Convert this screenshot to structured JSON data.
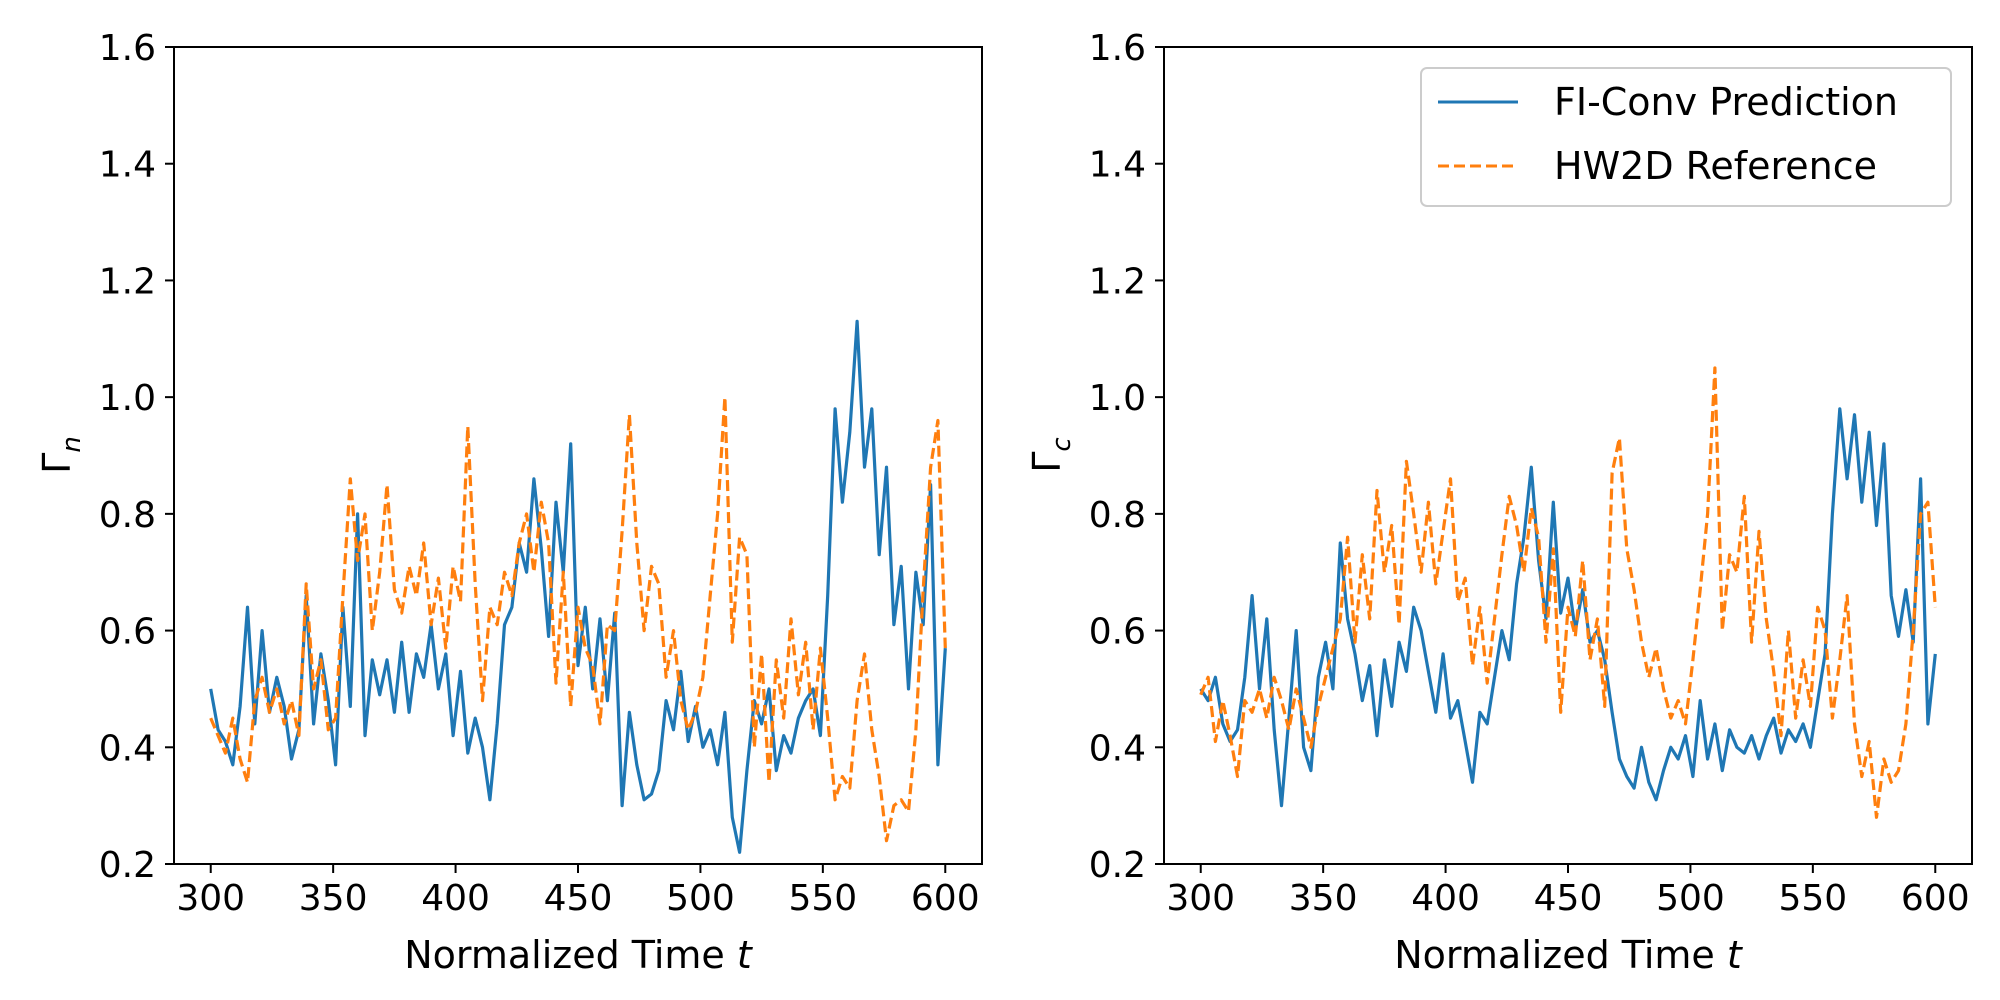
{
  "chart_data": [
    {
      "type": "line",
      "panel": "left",
      "title": "",
      "xlabel": "Normalized Time",
      "xlabel_var": "t",
      "ylabel": "Γ",
      "ylabel_sub": "n",
      "xlim": [
        285,
        615
      ],
      "ylim": [
        0.2,
        1.6
      ],
      "xticks": [
        300,
        350,
        400,
        450,
        500,
        550,
        600
      ],
      "xtick_labels": [
        "300",
        "350",
        "400",
        "450",
        "500",
        "550",
        "600"
      ],
      "yticks": [
        0.2,
        0.4,
        0.6,
        0.8,
        1.0,
        1.2,
        1.4,
        1.6
      ],
      "ytick_labels": [
        "0.2",
        "0.4",
        "0.6",
        "0.8",
        "1.0",
        "1.2",
        "1.4",
        "1.6"
      ],
      "grid": false,
      "legend": null,
      "series": [
        {
          "name": "FI-Conv Prediction",
          "color": "#1f77b4",
          "dash": "solid",
          "x": [
            300,
            303,
            306,
            309,
            312,
            315,
            318,
            321,
            324,
            327,
            330,
            333,
            336,
            339,
            342,
            345,
            348,
            351,
            354,
            357,
            360,
            363,
            366,
            369,
            372,
            375,
            378,
            381,
            384,
            387,
            390,
            393,
            396,
            399,
            402,
            405,
            408,
            411,
            414,
            417,
            420,
            423,
            426,
            429,
            432,
            435,
            438,
            441,
            444,
            447,
            450,
            453,
            456,
            459,
            462,
            465,
            468,
            471,
            474,
            477,
            480,
            483,
            486,
            489,
            492,
            495,
            498,
            501,
            504,
            507,
            510,
            513,
            516,
            519,
            522,
            525,
            528,
            531,
            534,
            537,
            540,
            543,
            546,
            549,
            552,
            555,
            558,
            561,
            564,
            567,
            570,
            573,
            576,
            579,
            582,
            585,
            588,
            591,
            594,
            597,
            600
          ],
          "values": [
            0.5,
            0.43,
            0.41,
            0.37,
            0.47,
            0.64,
            0.44,
            0.6,
            0.46,
            0.52,
            0.47,
            0.38,
            0.43,
            0.66,
            0.44,
            0.56,
            0.48,
            0.37,
            0.64,
            0.47,
            0.8,
            0.42,
            0.55,
            0.49,
            0.55,
            0.46,
            0.58,
            0.46,
            0.56,
            0.52,
            0.61,
            0.5,
            0.56,
            0.42,
            0.53,
            0.39,
            0.45,
            0.4,
            0.31,
            0.44,
            0.61,
            0.64,
            0.75,
            0.7,
            0.86,
            0.74,
            0.59,
            0.82,
            0.7,
            0.92,
            0.54,
            0.64,
            0.5,
            0.62,
            0.48,
            0.63,
            0.3,
            0.46,
            0.37,
            0.31,
            0.32,
            0.36,
            0.48,
            0.43,
            0.53,
            0.41,
            0.47,
            0.4,
            0.43,
            0.37,
            0.46,
            0.28,
            0.22,
            0.36,
            0.48,
            0.44,
            0.5,
            0.36,
            0.42,
            0.39,
            0.45,
            0.48,
            0.5,
            0.42,
            0.66,
            0.98,
            0.82,
            0.94,
            1.13,
            0.88,
            0.98,
            0.73,
            0.88,
            0.61,
            0.71,
            0.5,
            0.7,
            0.61,
            0.85,
            0.37,
            0.57
          ]
        },
        {
          "name": "HW2D Reference",
          "color": "#ff7f0e",
          "dash": "dashed",
          "x": [
            300,
            303,
            306,
            309,
            312,
            315,
            318,
            321,
            324,
            327,
            330,
            333,
            336,
            339,
            342,
            345,
            348,
            351,
            354,
            357,
            360,
            363,
            366,
            369,
            372,
            375,
            378,
            381,
            384,
            387,
            390,
            393,
            396,
            399,
            402,
            405,
            408,
            411,
            414,
            417,
            420,
            423,
            426,
            429,
            432,
            435,
            438,
            441,
            444,
            447,
            450,
            453,
            456,
            459,
            462,
            465,
            468,
            471,
            474,
            477,
            480,
            483,
            486,
            489,
            492,
            495,
            498,
            501,
            504,
            507,
            510,
            513,
            516,
            519,
            522,
            525,
            528,
            531,
            534,
            537,
            540,
            543,
            546,
            549,
            552,
            555,
            558,
            561,
            564,
            567,
            570,
            573,
            576,
            579,
            582,
            585,
            588,
            591,
            594,
            597,
            600
          ],
          "values": [
            0.45,
            0.42,
            0.39,
            0.45,
            0.38,
            0.34,
            0.48,
            0.52,
            0.46,
            0.5,
            0.44,
            0.48,
            0.42,
            0.68,
            0.5,
            0.55,
            0.43,
            0.45,
            0.66,
            0.86,
            0.72,
            0.8,
            0.6,
            0.7,
            0.85,
            0.67,
            0.63,
            0.71,
            0.66,
            0.75,
            0.61,
            0.69,
            0.57,
            0.71,
            0.65,
            0.95,
            0.68,
            0.48,
            0.64,
            0.61,
            0.7,
            0.66,
            0.75,
            0.8,
            0.7,
            0.82,
            0.75,
            0.51,
            0.7,
            0.47,
            0.64,
            0.57,
            0.54,
            0.44,
            0.61,
            0.6,
            0.77,
            0.97,
            0.75,
            0.6,
            0.71,
            0.68,
            0.52,
            0.6,
            0.48,
            0.43,
            0.46,
            0.52,
            0.66,
            0.8,
            1.0,
            0.58,
            0.76,
            0.73,
            0.4,
            0.56,
            0.34,
            0.55,
            0.45,
            0.62,
            0.49,
            0.58,
            0.43,
            0.57,
            0.45,
            0.31,
            0.35,
            0.33,
            0.48,
            0.56,
            0.43,
            0.35,
            0.24,
            0.3,
            0.31,
            0.29,
            0.43,
            0.67,
            0.88,
            0.96,
            0.57
          ]
        }
      ]
    },
    {
      "type": "line",
      "panel": "right",
      "title": "",
      "xlabel": "Normalized Time",
      "xlabel_var": "t",
      "ylabel": "Γ",
      "ylabel_sub": "c",
      "xlim": [
        285,
        615
      ],
      "ylim": [
        0.2,
        1.6
      ],
      "xticks": [
        300,
        350,
        400,
        450,
        500,
        550,
        600
      ],
      "xtick_labels": [
        "300",
        "350",
        "400",
        "450",
        "500",
        "550",
        "600"
      ],
      "yticks": [
        0.2,
        0.4,
        0.6,
        0.8,
        1.0,
        1.2,
        1.4,
        1.6
      ],
      "ytick_labels": [
        "0.2",
        "0.4",
        "0.6",
        "0.8",
        "1.0",
        "1.2",
        "1.4",
        "1.6"
      ],
      "grid": false,
      "legend": {
        "placement": "top-right",
        "entries": [
          "FI-Conv Prediction",
          "HW2D Reference"
        ]
      },
      "series": [
        {
          "name": "FI-Conv Prediction",
          "color": "#1f77b4",
          "dash": "solid",
          "x": [
            300,
            303,
            306,
            309,
            312,
            315,
            318,
            321,
            324,
            327,
            330,
            333,
            336,
            339,
            342,
            345,
            348,
            351,
            354,
            357,
            360,
            363,
            366,
            369,
            372,
            375,
            378,
            381,
            384,
            387,
            390,
            393,
            396,
            399,
            402,
            405,
            408,
            411,
            414,
            417,
            420,
            423,
            426,
            429,
            432,
            435,
            438,
            441,
            444,
            447,
            450,
            453,
            456,
            459,
            462,
            465,
            468,
            471,
            474,
            477,
            480,
            483,
            486,
            489,
            492,
            495,
            498,
            501,
            504,
            507,
            510,
            513,
            516,
            519,
            522,
            525,
            528,
            531,
            534,
            537,
            540,
            543,
            546,
            549,
            552,
            555,
            558,
            561,
            564,
            567,
            570,
            573,
            576,
            579,
            582,
            585,
            588,
            591,
            594,
            597,
            600
          ],
          "values": [
            0.5,
            0.48,
            0.52,
            0.44,
            0.41,
            0.43,
            0.52,
            0.66,
            0.5,
            0.62,
            0.43,
            0.3,
            0.45,
            0.6,
            0.4,
            0.36,
            0.52,
            0.58,
            0.5,
            0.75,
            0.62,
            0.56,
            0.48,
            0.54,
            0.42,
            0.55,
            0.47,
            0.58,
            0.53,
            0.64,
            0.6,
            0.53,
            0.46,
            0.56,
            0.45,
            0.48,
            0.41,
            0.34,
            0.46,
            0.44,
            0.52,
            0.6,
            0.55,
            0.68,
            0.76,
            0.88,
            0.72,
            0.62,
            0.82,
            0.63,
            0.69,
            0.6,
            0.67,
            0.58,
            0.6,
            0.55,
            0.46,
            0.38,
            0.35,
            0.33,
            0.4,
            0.34,
            0.31,
            0.36,
            0.4,
            0.38,
            0.42,
            0.35,
            0.48,
            0.38,
            0.44,
            0.36,
            0.43,
            0.4,
            0.39,
            0.42,
            0.38,
            0.42,
            0.45,
            0.39,
            0.43,
            0.41,
            0.44,
            0.4,
            0.48,
            0.56,
            0.8,
            0.98,
            0.86,
            0.97,
            0.82,
            0.94,
            0.78,
            0.92,
            0.66,
            0.59,
            0.67,
            0.58,
            0.86,
            0.44,
            0.56
          ]
        },
        {
          "name": "HW2D Reference",
          "color": "#ff7f0e",
          "dash": "dashed",
          "x": [
            300,
            303,
            306,
            309,
            312,
            315,
            318,
            321,
            324,
            327,
            330,
            333,
            336,
            339,
            342,
            345,
            348,
            351,
            354,
            357,
            360,
            363,
            366,
            369,
            372,
            375,
            378,
            381,
            384,
            387,
            390,
            393,
            396,
            399,
            402,
            405,
            408,
            411,
            414,
            417,
            420,
            423,
            426,
            429,
            432,
            435,
            438,
            441,
            444,
            447,
            450,
            453,
            456,
            459,
            462,
            465,
            468,
            471,
            474,
            477,
            480,
            483,
            486,
            489,
            492,
            495,
            498,
            501,
            504,
            507,
            510,
            513,
            516,
            519,
            522,
            525,
            528,
            531,
            534,
            537,
            540,
            543,
            546,
            549,
            552,
            555,
            558,
            561,
            564,
            567,
            570,
            573,
            576,
            579,
            582,
            585,
            588,
            591,
            594,
            597,
            600
          ],
          "values": [
            0.49,
            0.52,
            0.41,
            0.48,
            0.42,
            0.35,
            0.48,
            0.46,
            0.5,
            0.45,
            0.52,
            0.48,
            0.43,
            0.5,
            0.45,
            0.4,
            0.47,
            0.52,
            0.57,
            0.62,
            0.76,
            0.58,
            0.73,
            0.62,
            0.84,
            0.7,
            0.78,
            0.61,
            0.89,
            0.8,
            0.7,
            0.82,
            0.68,
            0.77,
            0.86,
            0.65,
            0.69,
            0.54,
            0.64,
            0.51,
            0.62,
            0.73,
            0.83,
            0.78,
            0.7,
            0.81,
            0.76,
            0.58,
            0.74,
            0.46,
            0.64,
            0.59,
            0.72,
            0.55,
            0.62,
            0.47,
            0.87,
            0.93,
            0.74,
            0.67,
            0.58,
            0.52,
            0.57,
            0.5,
            0.45,
            0.48,
            0.44,
            0.55,
            0.67,
            0.8,
            1.05,
            0.6,
            0.73,
            0.7,
            0.83,
            0.58,
            0.77,
            0.62,
            0.53,
            0.42,
            0.6,
            0.45,
            0.55,
            0.47,
            0.64,
            0.6,
            0.45,
            0.55,
            0.66,
            0.44,
            0.35,
            0.41,
            0.28,
            0.38,
            0.34,
            0.36,
            0.44,
            0.6,
            0.8,
            0.82,
            0.64
          ]
        }
      ]
    }
  ]
}
